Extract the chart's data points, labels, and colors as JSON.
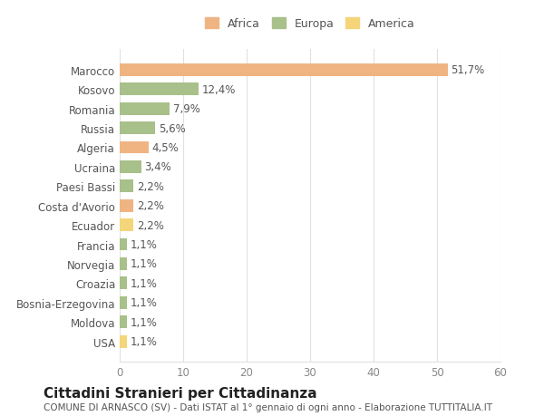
{
  "title": "Cittadini Stranieri per Cittadinanza",
  "subtitle": "COMUNE DI ARNASCO (SV) - Dati ISTAT al 1° gennaio di ogni anno - Elaborazione TUTTITALIA.IT",
  "legend_labels": [
    "Africa",
    "Europa",
    "America"
  ],
  "legend_colors": [
    "#f0b483",
    "#a8c08a",
    "#f5d57a"
  ],
  "categories": [
    "Marocco",
    "Kosovo",
    "Romania",
    "Russia",
    "Algeria",
    "Ucraina",
    "Paesi Bassi",
    "Costa d'Avorio",
    "Ecuador",
    "Francia",
    "Norvegia",
    "Croazia",
    "Bosnia-Erzegovina",
    "Moldova",
    "USA"
  ],
  "values": [
    51.7,
    12.4,
    7.9,
    5.6,
    4.5,
    3.4,
    2.2,
    2.2,
    2.2,
    1.1,
    1.1,
    1.1,
    1.1,
    1.1,
    1.1
  ],
  "bar_colors": [
    "#f0b483",
    "#a8c08a",
    "#a8c08a",
    "#a8c08a",
    "#f0b483",
    "#a8c08a",
    "#a8c08a",
    "#f0b483",
    "#f5d57a",
    "#a8c08a",
    "#a8c08a",
    "#a8c08a",
    "#a8c08a",
    "#a8c08a",
    "#f5d57a"
  ],
  "labels": [
    "51,7%",
    "12,4%",
    "7,9%",
    "5,6%",
    "4,5%",
    "3,4%",
    "2,2%",
    "2,2%",
    "2,2%",
    "1,1%",
    "1,1%",
    "1,1%",
    "1,1%",
    "1,1%",
    "1,1%"
  ],
  "xlim": [
    0,
    60
  ],
  "xticks": [
    0,
    10,
    20,
    30,
    40,
    50,
    60
  ],
  "bg_color": "#ffffff",
  "grid_color": "#e0e0e0",
  "bar_height": 0.65,
  "label_fontsize": 8.5,
  "tick_fontsize": 8.5,
  "title_fontsize": 11,
  "subtitle_fontsize": 7.5
}
